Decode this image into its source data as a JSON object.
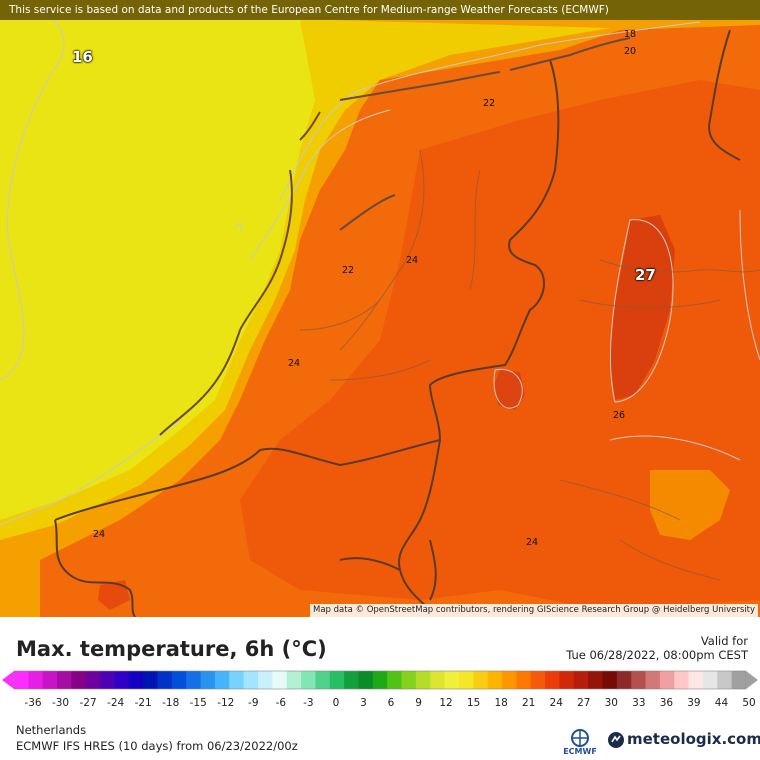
{
  "header": {
    "notice": "This service is based on data and products of the European Centre for Medium-range Weather Forecasts (ECMWF)"
  },
  "map": {
    "attribution": "Map data © OpenStreetMap contributors, rendering GIScience Research Group @ Heidelberg University",
    "labels": [
      {
        "text": "16",
        "kind": "big"
      },
      {
        "text": "27",
        "kind": "big"
      },
      {
        "text": "18",
        "kind": "contour"
      },
      {
        "text": "20",
        "kind": "contour"
      },
      {
        "text": "22",
        "kind": "contour"
      },
      {
        "text": "22",
        "kind": "contour"
      },
      {
        "text": "24",
        "kind": "contour"
      },
      {
        "text": "24",
        "kind": "contour"
      },
      {
        "text": "26",
        "kind": "contour"
      },
      {
        "text": "24",
        "kind": "contour"
      },
      {
        "text": "24",
        "kind": "contour"
      }
    ],
    "colors": {
      "sea": "#ebe414",
      "coast_yellow": "#f0d000",
      "land_orange": "#f25a10",
      "hot_red": "#d83b10",
      "border": "#5a3a2a"
    }
  },
  "footer": {
    "title": "Max. temperature, 6h (°C)",
    "valid_label": "Valid for",
    "valid_time": "Tue 06/28/2022, 08:00pm CEST",
    "region": "Netherlands",
    "model": "ECMWF IFS HRES (10 days) from 06/23/2022/00z",
    "ecmwf_logo": "ECMWF",
    "brand": "meteologix.com"
  },
  "legend": {
    "ticks": [
      "-36",
      "-30",
      "-27",
      "-24",
      "-21",
      "-18",
      "-15",
      "-12",
      "-9",
      "-6",
      "-3",
      "0",
      "3",
      "6",
      "9",
      "12",
      "15",
      "18",
      "21",
      "24",
      "27",
      "30",
      "33",
      "36",
      "39",
      "44",
      "50"
    ],
    "colors": [
      "#ff2cff",
      "#e61ee6",
      "#c814c8",
      "#a40ea4",
      "#880088",
      "#6e00a0",
      "#5000b4",
      "#3000c8",
      "#1400c0",
      "#0014b4",
      "#0032c8",
      "#0050dc",
      "#1470e6",
      "#2894f0",
      "#46b4fa",
      "#78d2ff",
      "#a0e6ff",
      "#c8f0ff",
      "#e6fafa",
      "#b4f0d2",
      "#82e6b4",
      "#50d28c",
      "#28be64",
      "#10a03c",
      "#0a8c28",
      "#1eaa14",
      "#50c314",
      "#82d21e",
      "#b4dc28",
      "#dce632",
      "#f0f03c",
      "#f5e628",
      "#facd14",
      "#ffb400",
      "#ff9600",
      "#ff7800",
      "#f55a0a",
      "#eb3c0a",
      "#d2280a",
      "#b41e0a",
      "#961408",
      "#780a06",
      "#8c2a2a",
      "#b45050",
      "#d27878",
      "#f0a0a0",
      "#ffc8c8",
      "#ffe6e6",
      "#e6e6e6",
      "#c8c8c8",
      "#a0a0a0"
    ]
  }
}
